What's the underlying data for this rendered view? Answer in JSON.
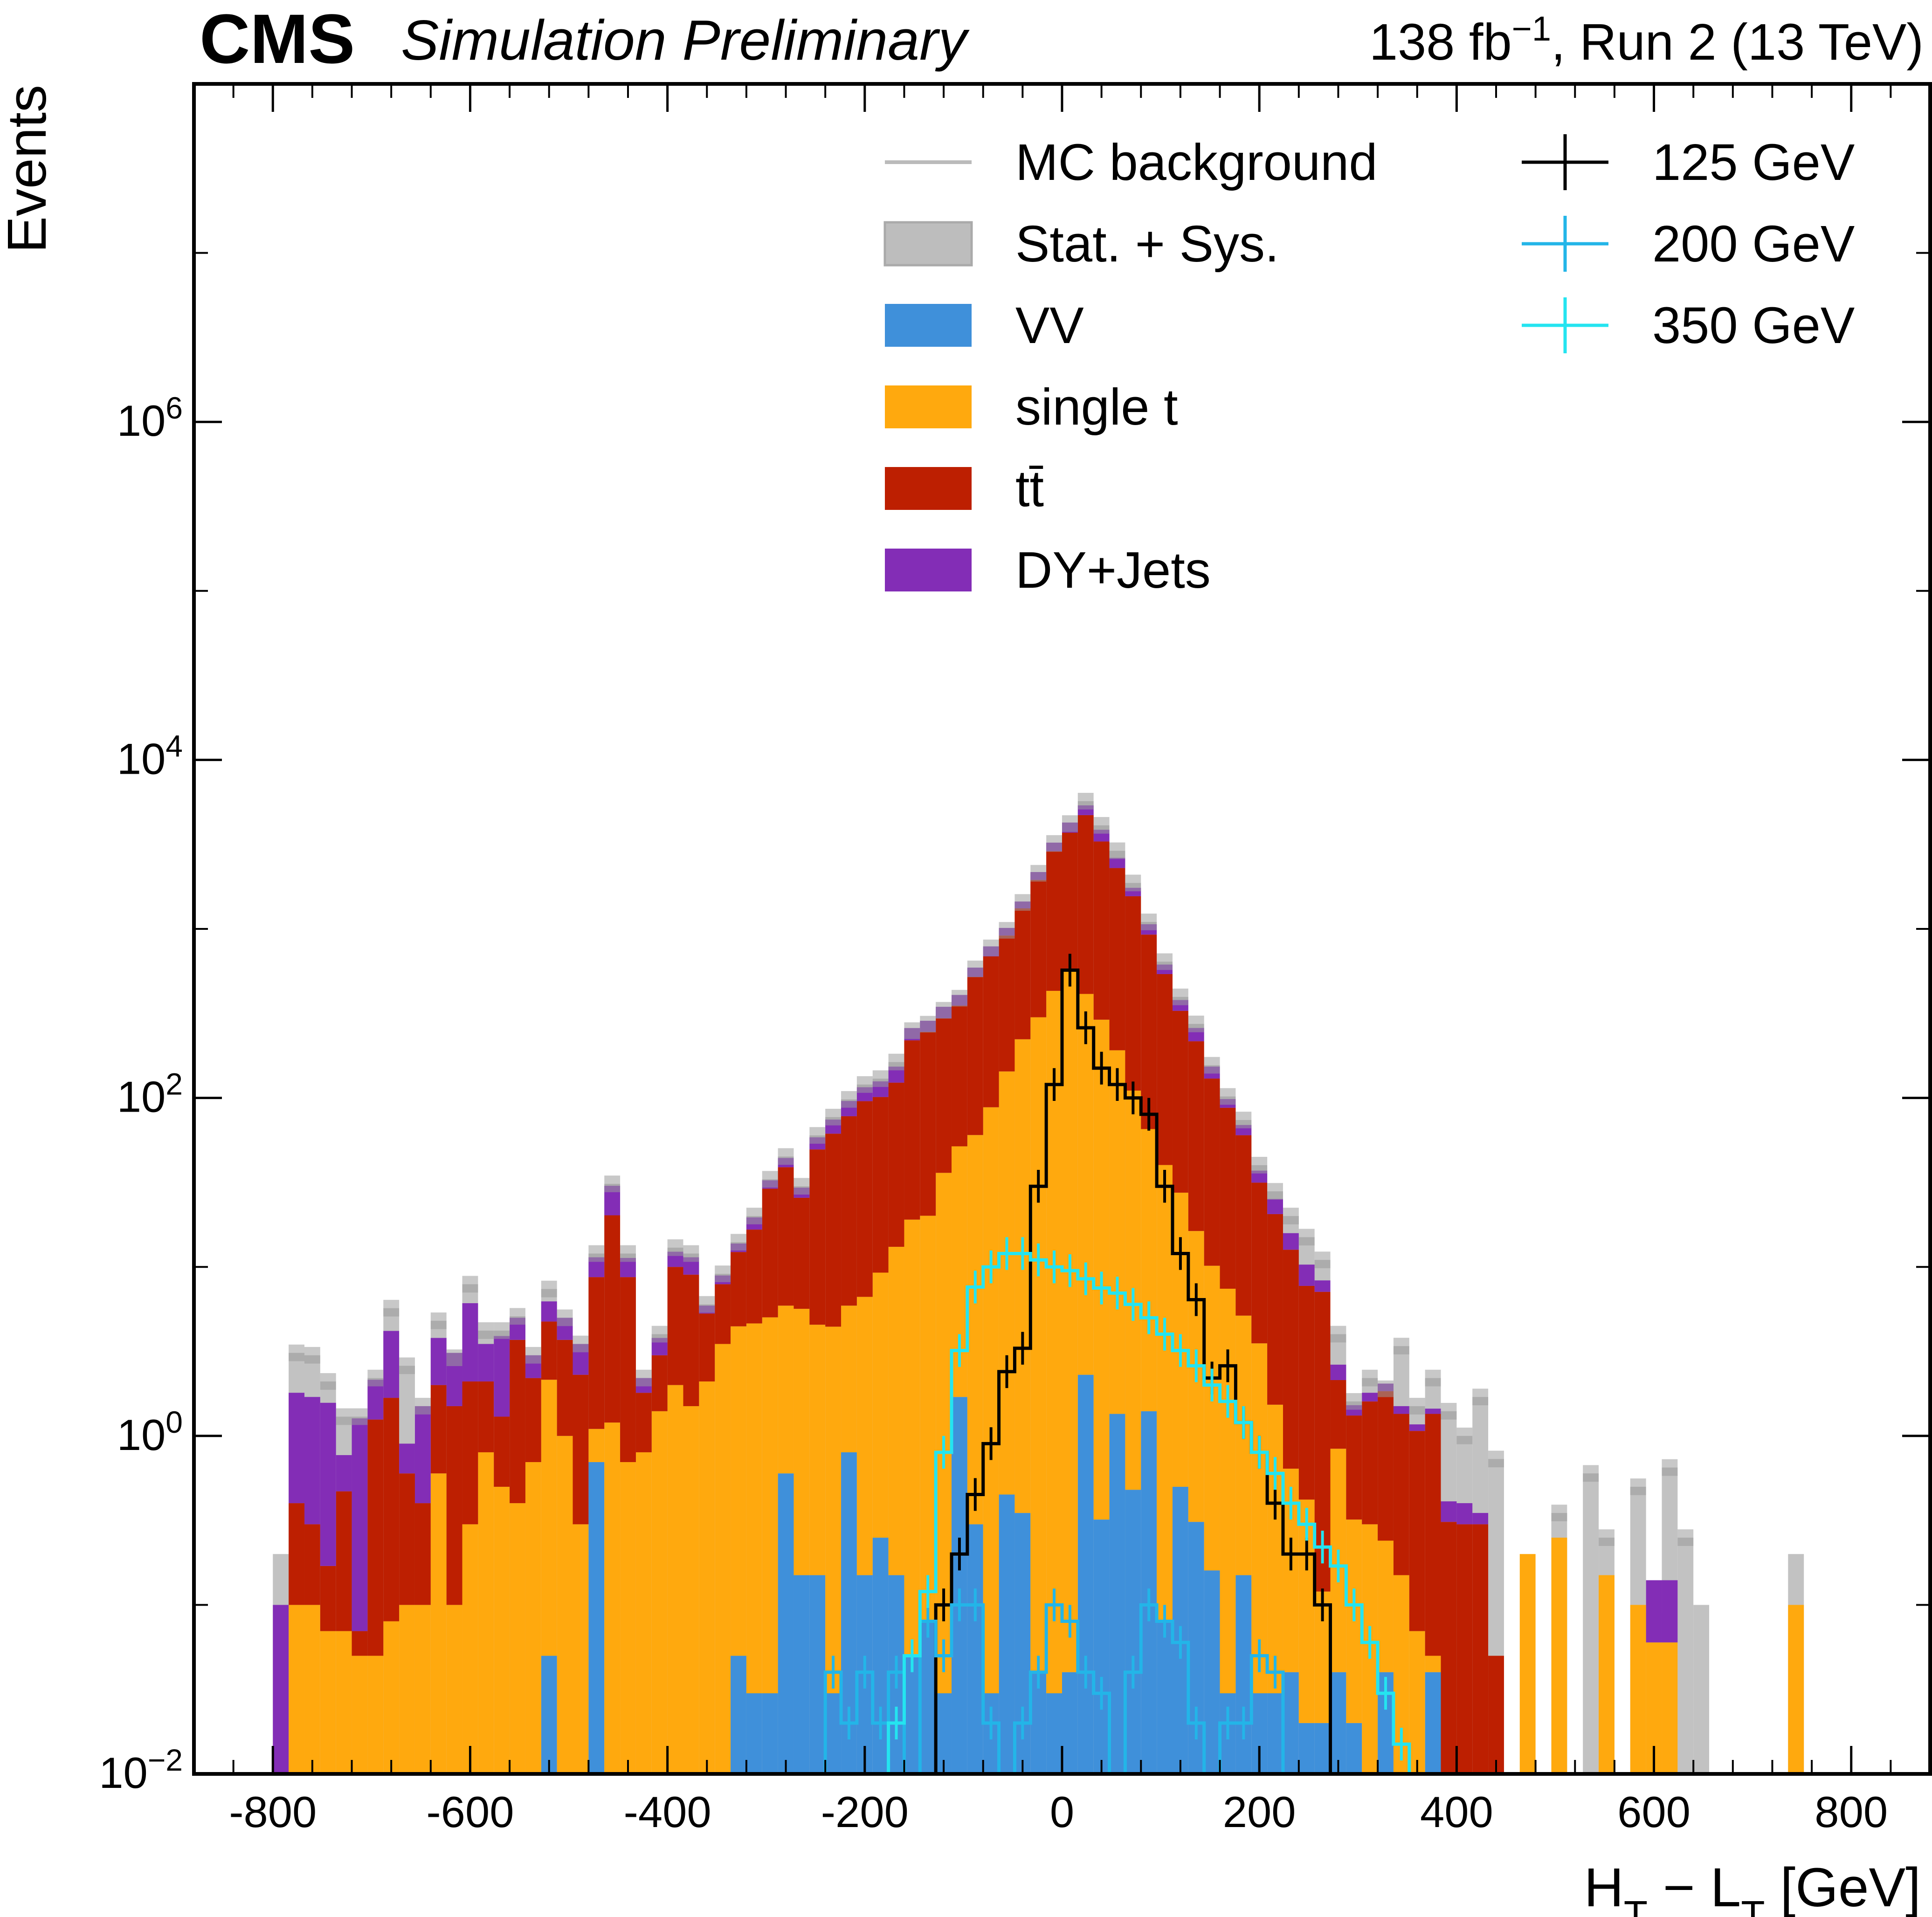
{
  "header": {
    "experiment": "CMS",
    "status": "Simulation Preliminary",
    "lumi_prefix": "138 fb",
    "lumi_exponent": "−1",
    "lumi_suffix": ", Run 2 (13 TeV)"
  },
  "chart_data": {
    "type": "bar",
    "subtype": "stacked histogram, log-scale y",
    "xlabel_main": "H",
    "xlabel_sub1": "T",
    "xlabel_mid": " − L",
    "xlabel_sub2": "T",
    "xlabel_unit": " [GeV]",
    "ylabel": "Events",
    "xlim": [
      -880,
      880
    ],
    "ylim": [
      0.01,
      100000000
    ],
    "y_log": true,
    "x_ticks": [
      -800,
      -600,
      -400,
      -200,
      0,
      200,
      400,
      600,
      800
    ],
    "x_tick_labels": [
      "-800",
      "-600",
      "-400",
      "-200",
      "0",
      "200",
      "400",
      "600",
      "800"
    ],
    "y_ticks": [
      {
        "value": 0.01,
        "base": "10",
        "exp": "−2"
      },
      {
        "value": 1,
        "base": "10",
        "exp": "0"
      },
      {
        "value": 100,
        "base": "10",
        "exp": "2"
      },
      {
        "value": 10000,
        "base": "10",
        "exp": "4"
      },
      {
        "value": 1000000,
        "base": "10",
        "exp": "6"
      }
    ],
    "bin_edges_start": -800,
    "bin_width": 16,
    "stack_order": [
      "VV",
      "single t",
      "tt̄",
      "DY+Jets"
    ],
    "background_total": [
      0.2,
      3.1,
      3.0,
      2.1,
      1.3,
      1.3,
      2.2,
      5.7,
      2.6,
      1.5,
      4.8,
      2.9,
      7.9,
      4.2,
      4.2,
      5.1,
      3.0,
      7.4,
      5.0,
      3.5,
      12,
      31,
      12,
      2.2,
      4.0,
      13,
      12,
      6.0,
      9.1,
      14,
      20,
      33,
      45,
      30,
      60,
      77,
      98,
      120,
      130,
      163,
      250,
      273,
      330,
      389,
      580,
      772,
      981,
      1434,
      2134,
      3203,
      4200,
      5700,
      4100,
      2900,
      1870,
      1100,
      640,
      396,
      274,
      156,
      102,
      74,
      40,
      28,
      20,
      15,
      11,
      4.0,
      1.6,
      2.2,
      1.9,
      3.4,
      1.5,
      2.2,
      1.4,
      1.0,
      1.7,
      0.73,
      0.01,
      0.01,
      0.01,
      0.35,
      0.0,
      0.6,
      0.25,
      0.0,
      0.5,
      0.09,
      0.65,
      0.25,
      0.1,
      0.0,
      0.0,
      0.01,
      0.0,
      0.0,
      0.2,
      0.0
    ],
    "series": [
      {
        "name": "VV",
        "color": "#3f90da",
        "values": [
          0,
          0,
          0,
          0,
          0,
          0,
          0,
          0,
          0,
          0,
          0,
          0,
          0,
          0,
          0,
          0,
          0,
          0.05,
          0,
          0,
          0.7,
          0,
          0,
          0,
          0,
          0,
          0,
          0,
          0,
          0.05,
          0.03,
          0.03,
          0.6,
          0.15,
          0.15,
          0.03,
          0.8,
          0.15,
          0.25,
          0.15,
          0.05,
          0.08,
          0.03,
          1.7,
          0.3,
          0.03,
          0.45,
          0.35,
          0.04,
          0.03,
          0.04,
          2.3,
          0.32,
          1.35,
          0.48,
          1.4,
          0.08,
          0.5,
          0.31,
          0.16,
          0.03,
          0.15,
          0.03,
          0.03,
          0.04,
          0.02,
          0.02,
          0.04,
          0.02,
          0,
          0.04,
          0,
          0,
          0.04,
          0,
          0,
          0,
          0,
          0,
          0,
          0,
          0,
          0,
          0,
          0,
          0,
          0,
          0,
          0,
          0,
          0,
          0,
          0,
          0,
          0,
          0,
          0,
          0,
          0,
          0,
          0
        ]
      },
      {
        "name": "single t",
        "color": "#ffa90e",
        "values": [
          0,
          0.1,
          0.1,
          0.07,
          0.07,
          0.05,
          0.05,
          0.08,
          0.1,
          0.1,
          0.6,
          0.1,
          0.3,
          0.8,
          0.5,
          0.4,
          0.7,
          2.1,
          1.0,
          0.3,
          0.4,
          1.2,
          0.7,
          0.8,
          1.4,
          2.0,
          1.5,
          2.1,
          3.5,
          4.4,
          4.6,
          5.0,
          5.3,
          5.5,
          4.4,
          4.4,
          5.1,
          6.5,
          9.0,
          13,
          19,
          20,
          36,
          50,
          60,
          88,
          143,
          222,
          300,
          430,
          560,
          410,
          290,
          190,
          110,
          64,
          40,
          27,
          16,
          10,
          7.4,
          5.0,
          3.5,
          1.5,
          0.6,
          0.4,
          0.1,
          0.8,
          0.3,
          0.3,
          0.2,
          0.15,
          0.07,
          0.01,
          0.01,
          0,
          0,
          0,
          0,
          0.2,
          0,
          0.25,
          0,
          0,
          0.15,
          0,
          0.1,
          0.06,
          0.06,
          0,
          0,
          0,
          0,
          0,
          0,
          0,
          0.1,
          0,
          0
        ]
      },
      {
        "name": "tt̄",
        "color": "#bd1f01",
        "values": [
          0,
          0.3,
          0.2,
          0.1,
          0.4,
          0.02,
          1.2,
          1.6,
          0.5,
          0.3,
          1.4,
          1.4,
          1.8,
          1.3,
          0.8,
          3.3,
          1.5,
          2.6,
          2.7,
          2.0,
          7.6,
          19,
          8.0,
          1.0,
          1.6,
          8.0,
          7.5,
          3.2,
          4.4,
          7.8,
          12,
          24,
          33,
          20,
          45,
          57,
          72,
          89,
          92,
          110,
          200,
          226,
          260,
          300,
          460,
          600,
          770,
          1100,
          1650,
          2450,
          3150,
          4300,
          3000,
          2100,
          1450,
          860,
          500,
          300,
          200,
          120,
          80,
          55,
          28,
          19,
          12,
          7.3,
          7.0,
          1.3,
          1.0,
          1.3,
          1.6,
          1.2,
          1.0,
          1.3,
          0.3,
          0.3,
          0.3,
          0.05,
          0,
          0,
          0,
          0,
          0,
          0,
          0,
          0,
          0,
          0,
          0,
          0,
          0,
          0,
          0,
          0,
          0,
          0,
          0,
          0,
          0,
          0,
          0
        ]
      },
      {
        "name": "DY+Jets",
        "color": "#832db6",
        "values": [
          0.1,
          1.4,
          1.4,
          1.4,
          0.3,
          1.2,
          0.9,
          2.5,
          0.3,
          1.1,
          1.8,
          1.6,
          4.0,
          1.4,
          2.6,
          1.3,
          0.8,
          1.5,
          1.3,
          1.2,
          2.7,
          10,
          2.6,
          0.4,
          0.8,
          2.3,
          2.4,
          0.6,
          1.0,
          1.5,
          3.0,
          3.5,
          5.2,
          3.8,
          8.9,
          13,
          18,
          20,
          24,
          30,
          40,
          40,
          50,
          55,
          70,
          100,
          100,
          130,
          220,
          360,
          550,
          670,
          570,
          340,
          190,
          140,
          75,
          52,
          43,
          23,
          11,
          9,
          5.6,
          4.7,
          3.2,
          2.6,
          1.2,
          0.5,
          0.2,
          0.2,
          0.2,
          0.15,
          0.1,
          0.1,
          0.1,
          0.1,
          0.05,
          0,
          0,
          0,
          0,
          0,
          0,
          0,
          0,
          0,
          0,
          0.08,
          0.08,
          0,
          0,
          0,
          0,
          0,
          0,
          0,
          0,
          0,
          0,
          0,
          0
        ]
      }
    ],
    "signals": [
      {
        "name": "125 GeV",
        "color": "#000000",
        "values": [
          0,
          0,
          0,
          0,
          0,
          0,
          0,
          0,
          0,
          0,
          0,
          0,
          0,
          0,
          0,
          0,
          0,
          0,
          0,
          0,
          0,
          0,
          0,
          0,
          0,
          0,
          0,
          0,
          0,
          0,
          0,
          0,
          0,
          0,
          0,
          0,
          0,
          0,
          0,
          0,
          0,
          0.01,
          0.1,
          0.2,
          0.45,
          0.9,
          2.4,
          3.3,
          30,
          120,
          570,
          260,
          150,
          120,
          100,
          80,
          30,
          12,
          6.4,
          2.2,
          2.6,
          1.2,
          0.8,
          0.4,
          0.2,
          0.2,
          0.1,
          0.01,
          0,
          0,
          0,
          0,
          0,
          0,
          0,
          0,
          0,
          0,
          0,
          0,
          0,
          0,
          0,
          0,
          0,
          0,
          0,
          0,
          0,
          0,
          0,
          0,
          0,
          0,
          0,
          0,
          0,
          0,
          0,
          0
        ]
      },
      {
        "name": "200 GeV",
        "color": "#23b5e8",
        "values": [
          0,
          0,
          0,
          0,
          0,
          0,
          0,
          0,
          0,
          0,
          0,
          0,
          0,
          0,
          0,
          0,
          0,
          0,
          0,
          0,
          0,
          0,
          0,
          0,
          0,
          0,
          0,
          0,
          0,
          0,
          0,
          0,
          0,
          0,
          0.01,
          0.04,
          0.02,
          0.04,
          0.02,
          0.04,
          0,
          0.08,
          0.05,
          0.1,
          0.1,
          0.02,
          0.01,
          0.02,
          0.04,
          0.1,
          0.08,
          0.04,
          0.03,
          0,
          0.04,
          0.1,
          0.08,
          0.06,
          0.02,
          0.01,
          0.02,
          0.02,
          0.05,
          0.04,
          0.01,
          0.01,
          0,
          0,
          0,
          0,
          0,
          0,
          0,
          0,
          0,
          0,
          0,
          0,
          0,
          0,
          0,
          0,
          0,
          0,
          0,
          0,
          0,
          0,
          0,
          0,
          0,
          0,
          0,
          0,
          0,
          0,
          0,
          0,
          0,
          0
        ]
      },
      {
        "name": "350 GeV",
        "color": "#24e4f0",
        "values": [
          0,
          0,
          0,
          0,
          0,
          0,
          0,
          0,
          0,
          0,
          0,
          0,
          0,
          0,
          0,
          0,
          0,
          0,
          0,
          0,
          0,
          0,
          0,
          0,
          0,
          0,
          0,
          0,
          0,
          0,
          0,
          0,
          0,
          0,
          0,
          0,
          0,
          0,
          0,
          0.02,
          0.05,
          0.12,
          0.8,
          3.2,
          7.6,
          10,
          12,
          12,
          11,
          10,
          9.5,
          8.5,
          7.5,
          7,
          6,
          5,
          4,
          3.2,
          2.6,
          2,
          1.6,
          1.2,
          0.8,
          0.6,
          0.4,
          0.3,
          0.22,
          0.17,
          0.1,
          0.06,
          0.03,
          0.015,
          0.01,
          0,
          0,
          0,
          0,
          0,
          0,
          0,
          0,
          0,
          0,
          0,
          0,
          0,
          0,
          0,
          0,
          0,
          0,
          0,
          0,
          0,
          0,
          0,
          0,
          0,
          0,
          0,
          0
        ]
      }
    ],
    "legend": {
      "position": "top-right",
      "left_column": [
        {
          "label": "MC background",
          "kind": "line",
          "color": "#bbbbbb"
        },
        {
          "label": "Stat. + Sys.",
          "kind": "patch",
          "color": "#bdbdbd"
        },
        {
          "label": "VV",
          "kind": "patch",
          "color": "#3f90da"
        },
        {
          "label": "single t",
          "kind": "patch",
          "color": "#ffa90e"
        },
        {
          "label": "tt̄",
          "kind": "patch",
          "color": "#bd1f01"
        },
        {
          "label": "DY+Jets",
          "kind": "patch",
          "color": "#832db6"
        }
      ],
      "right_column": [
        {
          "label": "125 GeV",
          "kind": "errorbar",
          "color": "#000000"
        },
        {
          "label": "200 GeV",
          "kind": "errorbar",
          "color": "#23b5e8"
        },
        {
          "label": "350 GeV",
          "kind": "errorbar",
          "color": "#24e4f0"
        }
      ]
    },
    "uncertainty_color": "#9a9a9a"
  }
}
